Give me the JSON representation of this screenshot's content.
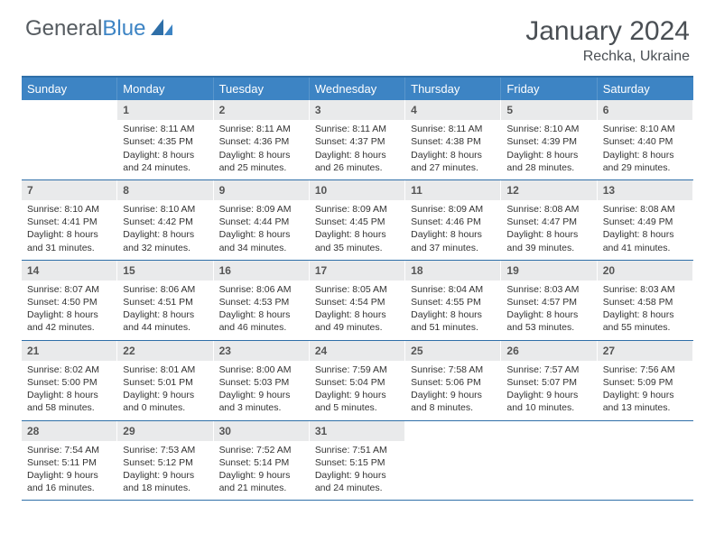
{
  "logo": {
    "word1": "General",
    "word2": "Blue"
  },
  "title": "January 2024",
  "location": "Rechka, Ukraine",
  "colors": {
    "header_bg": "#3d84c4",
    "header_border": "#2f6fa8",
    "daynum_bg": "#e9eaeb",
    "text": "#333333",
    "title_text": "#4a4f54"
  },
  "day_labels": [
    "Sunday",
    "Monday",
    "Tuesday",
    "Wednesday",
    "Thursday",
    "Friday",
    "Saturday"
  ],
  "weeks": [
    [
      {
        "n": "",
        "sr": "",
        "ss": "",
        "dl": ""
      },
      {
        "n": "1",
        "sr": "Sunrise: 8:11 AM",
        "ss": "Sunset: 4:35 PM",
        "dl": "Daylight: 8 hours and 24 minutes."
      },
      {
        "n": "2",
        "sr": "Sunrise: 8:11 AM",
        "ss": "Sunset: 4:36 PM",
        "dl": "Daylight: 8 hours and 25 minutes."
      },
      {
        "n": "3",
        "sr": "Sunrise: 8:11 AM",
        "ss": "Sunset: 4:37 PM",
        "dl": "Daylight: 8 hours and 26 minutes."
      },
      {
        "n": "4",
        "sr": "Sunrise: 8:11 AM",
        "ss": "Sunset: 4:38 PM",
        "dl": "Daylight: 8 hours and 27 minutes."
      },
      {
        "n": "5",
        "sr": "Sunrise: 8:10 AM",
        "ss": "Sunset: 4:39 PM",
        "dl": "Daylight: 8 hours and 28 minutes."
      },
      {
        "n": "6",
        "sr": "Sunrise: 8:10 AM",
        "ss": "Sunset: 4:40 PM",
        "dl": "Daylight: 8 hours and 29 minutes."
      }
    ],
    [
      {
        "n": "7",
        "sr": "Sunrise: 8:10 AM",
        "ss": "Sunset: 4:41 PM",
        "dl": "Daylight: 8 hours and 31 minutes."
      },
      {
        "n": "8",
        "sr": "Sunrise: 8:10 AM",
        "ss": "Sunset: 4:42 PM",
        "dl": "Daylight: 8 hours and 32 minutes."
      },
      {
        "n": "9",
        "sr": "Sunrise: 8:09 AM",
        "ss": "Sunset: 4:44 PM",
        "dl": "Daylight: 8 hours and 34 minutes."
      },
      {
        "n": "10",
        "sr": "Sunrise: 8:09 AM",
        "ss": "Sunset: 4:45 PM",
        "dl": "Daylight: 8 hours and 35 minutes."
      },
      {
        "n": "11",
        "sr": "Sunrise: 8:09 AM",
        "ss": "Sunset: 4:46 PM",
        "dl": "Daylight: 8 hours and 37 minutes."
      },
      {
        "n": "12",
        "sr": "Sunrise: 8:08 AM",
        "ss": "Sunset: 4:47 PM",
        "dl": "Daylight: 8 hours and 39 minutes."
      },
      {
        "n": "13",
        "sr": "Sunrise: 8:08 AM",
        "ss": "Sunset: 4:49 PM",
        "dl": "Daylight: 8 hours and 41 minutes."
      }
    ],
    [
      {
        "n": "14",
        "sr": "Sunrise: 8:07 AM",
        "ss": "Sunset: 4:50 PM",
        "dl": "Daylight: 8 hours and 42 minutes."
      },
      {
        "n": "15",
        "sr": "Sunrise: 8:06 AM",
        "ss": "Sunset: 4:51 PM",
        "dl": "Daylight: 8 hours and 44 minutes."
      },
      {
        "n": "16",
        "sr": "Sunrise: 8:06 AM",
        "ss": "Sunset: 4:53 PM",
        "dl": "Daylight: 8 hours and 46 minutes."
      },
      {
        "n": "17",
        "sr": "Sunrise: 8:05 AM",
        "ss": "Sunset: 4:54 PM",
        "dl": "Daylight: 8 hours and 49 minutes."
      },
      {
        "n": "18",
        "sr": "Sunrise: 8:04 AM",
        "ss": "Sunset: 4:55 PM",
        "dl": "Daylight: 8 hours and 51 minutes."
      },
      {
        "n": "19",
        "sr": "Sunrise: 8:03 AM",
        "ss": "Sunset: 4:57 PM",
        "dl": "Daylight: 8 hours and 53 minutes."
      },
      {
        "n": "20",
        "sr": "Sunrise: 8:03 AM",
        "ss": "Sunset: 4:58 PM",
        "dl": "Daylight: 8 hours and 55 minutes."
      }
    ],
    [
      {
        "n": "21",
        "sr": "Sunrise: 8:02 AM",
        "ss": "Sunset: 5:00 PM",
        "dl": "Daylight: 8 hours and 58 minutes."
      },
      {
        "n": "22",
        "sr": "Sunrise: 8:01 AM",
        "ss": "Sunset: 5:01 PM",
        "dl": "Daylight: 9 hours and 0 minutes."
      },
      {
        "n": "23",
        "sr": "Sunrise: 8:00 AM",
        "ss": "Sunset: 5:03 PM",
        "dl": "Daylight: 9 hours and 3 minutes."
      },
      {
        "n": "24",
        "sr": "Sunrise: 7:59 AM",
        "ss": "Sunset: 5:04 PM",
        "dl": "Daylight: 9 hours and 5 minutes."
      },
      {
        "n": "25",
        "sr": "Sunrise: 7:58 AM",
        "ss": "Sunset: 5:06 PM",
        "dl": "Daylight: 9 hours and 8 minutes."
      },
      {
        "n": "26",
        "sr": "Sunrise: 7:57 AM",
        "ss": "Sunset: 5:07 PM",
        "dl": "Daylight: 9 hours and 10 minutes."
      },
      {
        "n": "27",
        "sr": "Sunrise: 7:56 AM",
        "ss": "Sunset: 5:09 PM",
        "dl": "Daylight: 9 hours and 13 minutes."
      }
    ],
    [
      {
        "n": "28",
        "sr": "Sunrise: 7:54 AM",
        "ss": "Sunset: 5:11 PM",
        "dl": "Daylight: 9 hours and 16 minutes."
      },
      {
        "n": "29",
        "sr": "Sunrise: 7:53 AM",
        "ss": "Sunset: 5:12 PM",
        "dl": "Daylight: 9 hours and 18 minutes."
      },
      {
        "n": "30",
        "sr": "Sunrise: 7:52 AM",
        "ss": "Sunset: 5:14 PM",
        "dl": "Daylight: 9 hours and 21 minutes."
      },
      {
        "n": "31",
        "sr": "Sunrise: 7:51 AM",
        "ss": "Sunset: 5:15 PM",
        "dl": "Daylight: 9 hours and 24 minutes."
      },
      {
        "n": "",
        "sr": "",
        "ss": "",
        "dl": ""
      },
      {
        "n": "",
        "sr": "",
        "ss": "",
        "dl": ""
      },
      {
        "n": "",
        "sr": "",
        "ss": "",
        "dl": ""
      }
    ]
  ]
}
